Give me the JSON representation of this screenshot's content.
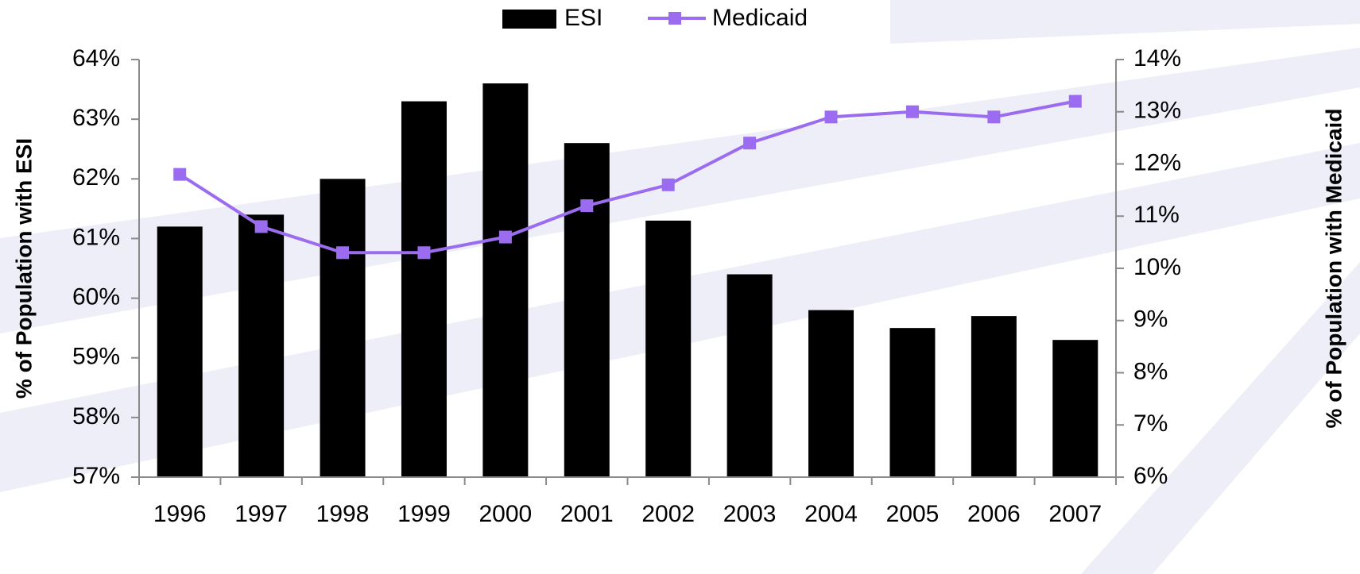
{
  "chart_data": {
    "type": "bar_line",
    "categories": [
      "1996",
      "1997",
      "1998",
      "1999",
      "2000",
      "2001",
      "2002",
      "2003",
      "2004",
      "2005",
      "2006",
      "2007"
    ],
    "ylabel": "% of Population with ESI",
    "y2label": "% of Population with Medicaid",
    "ylim": [
      57,
      64
    ],
    "yticks": [
      {
        "value": 57,
        "label": "57%"
      },
      {
        "value": 58,
        "label": "58%"
      },
      {
        "value": 59,
        "label": "59%"
      },
      {
        "value": 60,
        "label": "60%"
      },
      {
        "value": 61,
        "label": "61%"
      },
      {
        "value": 62,
        "label": "62%"
      },
      {
        "value": 63,
        "label": "63%"
      },
      {
        "value": 64,
        "label": "64%"
      }
    ],
    "y2lim": [
      6,
      14
    ],
    "y2ticks": [
      {
        "value": 6,
        "label": "6%"
      },
      {
        "value": 7,
        "label": "7%"
      },
      {
        "value": 8,
        "label": "8%"
      },
      {
        "value": 9,
        "label": "9%"
      },
      {
        "value": 10,
        "label": "10%"
      },
      {
        "value": 11,
        "label": "11%"
      },
      {
        "value": 12,
        "label": "12%"
      },
      {
        "value": 13,
        "label": "13%"
      },
      {
        "value": 14,
        "label": "14%"
      }
    ],
    "series": [
      {
        "name": "ESI",
        "type": "bar",
        "color": "#000000",
        "values": [
          61.2,
          61.4,
          62.0,
          63.3,
          63.6,
          62.6,
          61.3,
          60.4,
          59.8,
          59.5,
          59.7,
          59.3
        ]
      },
      {
        "name": "Medicaid",
        "type": "line",
        "axis": "y2",
        "color": "#9b6cf0",
        "values": [
          11.8,
          10.8,
          10.3,
          10.3,
          10.6,
          11.2,
          11.6,
          12.4,
          12.9,
          13.0,
          12.9,
          13.2
        ]
      }
    ],
    "legend": "top"
  }
}
